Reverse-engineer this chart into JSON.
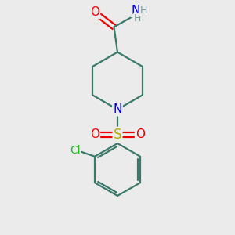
{
  "background_color": "#ebebeb",
  "atom_colors": {
    "C": "#3a7a6a",
    "N": "#0000ee",
    "O": "#ee0000",
    "S": "#bbaa00",
    "Cl": "#22bb22",
    "H": "#7a9a9a"
  },
  "bond_color": "#3a7a6a",
  "bond_width": 1.6,
  "figsize": [
    3.0,
    3.0
  ],
  "dpi": 100,
  "xlim": [
    -2.5,
    2.5
  ],
  "ylim": [
    -3.8,
    2.8
  ]
}
